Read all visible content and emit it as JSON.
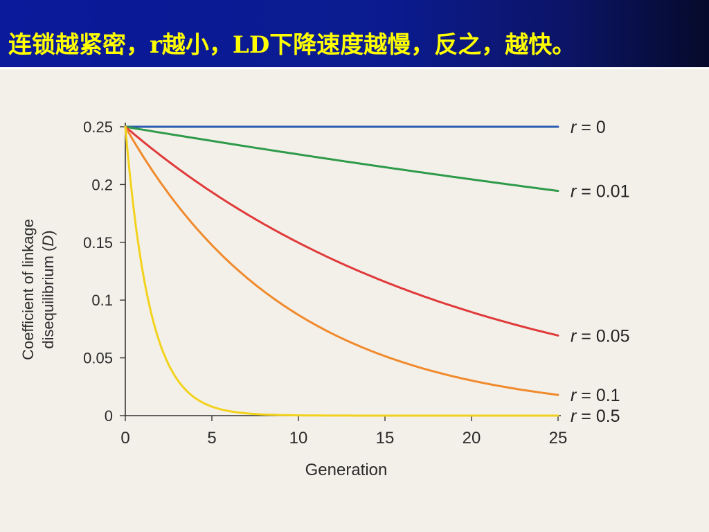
{
  "slide": {
    "title": "连锁越紧密，r越小，LD下降速度越慢，反之，越快。"
  },
  "chart_data": {
    "type": "line",
    "title": "",
    "xlabel": "Generation",
    "ylabel": "Coefficient of linkage disequilibrium (D)",
    "ylabel_line1": "Coefficient of linkage",
    "ylabel_line2_pre": "disequilibrium (",
    "ylabel_line2_var": "D",
    "ylabel_line2_post": ")",
    "xlim": [
      0,
      25
    ],
    "ylim": [
      0,
      0.25
    ],
    "xticks": [
      0,
      5,
      10,
      15,
      20,
      25
    ],
    "xtick_labels": [
      "0",
      "5",
      "10",
      "15",
      "20",
      "25"
    ],
    "yticks": [
      0,
      0.05,
      0.1,
      0.15,
      0.2,
      0.25
    ],
    "ytick_labels": [
      "0",
      "0.05",
      "0.1",
      "0.15",
      "0.2",
      "0.25"
    ],
    "grid": false,
    "legend": "inline labels at right end of each line",
    "D0": 0.25,
    "series": [
      {
        "name": "r = 0",
        "var": "r",
        "eq": " = 0",
        "r": 0,
        "color": "#2a5db0"
      },
      {
        "name": "r = 0.01",
        "var": "r",
        "eq": " = 0.01",
        "r": 0.01,
        "color": "#2e9a4a"
      },
      {
        "name": "r = 0.05",
        "var": "r",
        "eq": " = 0.05",
        "r": 0.05,
        "color": "#e03a3a"
      },
      {
        "name": "r = 0.1",
        "var": "r",
        "eq": " = 0.1",
        "r": 0.1,
        "color": "#f08a2c"
      },
      {
        "name": "r = 0.5",
        "var": "r",
        "eq": " = 0.5",
        "r": 0.5,
        "color": "#f2d21c"
      }
    ]
  }
}
